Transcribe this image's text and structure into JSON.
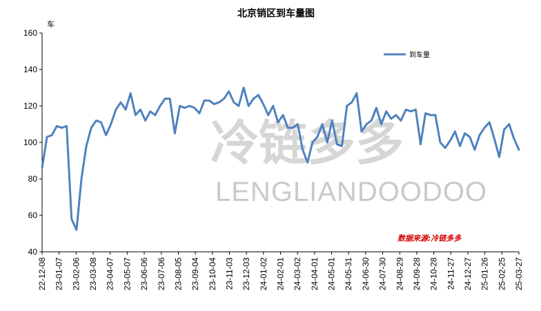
{
  "chart_data": {
    "type": "line",
    "title": "北京销区到车量图",
    "ylabel": "车",
    "ylim": [
      40,
      160
    ],
    "yticks": [
      40,
      60,
      80,
      100,
      120,
      140,
      160
    ],
    "grid": false,
    "legend_position": "top-right",
    "x_tick_labels": [
      "22-12-08",
      "23-01-07",
      "23-02-06",
      "23-03-08",
      "23-04-07",
      "23-05-07",
      "23-06-06",
      "23-07-06",
      "23-08-05",
      "23-09-04",
      "23-10-04",
      "23-11-03",
      "23-12-03",
      "24-01-02",
      "24-02-01",
      "24-03-02",
      "24-04-01",
      "24-05-01",
      "24-05-31",
      "24-06-30",
      "24-07-30",
      "24-08-29",
      "24-09-28",
      "24-10-28",
      "24-11-27",
      "24-12-27",
      "25-01-26",
      "25-02-25",
      "25-03-27"
    ],
    "series": [
      {
        "name": "到车量",
        "color": "#4f81bd",
        "values": [
          86,
          103,
          104,
          109,
          108,
          109,
          58,
          52,
          80,
          98,
          108,
          112,
          111,
          104,
          110,
          118,
          122,
          118,
          127,
          115,
          118,
          112,
          117,
          115,
          120,
          124,
          124,
          105,
          120,
          119,
          120,
          119,
          116,
          123,
          123,
          121,
          122,
          124,
          128,
          122,
          120,
          130,
          120,
          124,
          126,
          121,
          115,
          120,
          111,
          115,
          108,
          108,
          110,
          96,
          89,
          100,
          103,
          110,
          100,
          112,
          99,
          98,
          120,
          122,
          127,
          106,
          110,
          112,
          119,
          110,
          117,
          113,
          115,
          112,
          118,
          117,
          118,
          99,
          116,
          115,
          115,
          100,
          97,
          101,
          106,
          98,
          105,
          103,
          96,
          104,
          108,
          111,
          102,
          92,
          107,
          110,
          102,
          96
        ]
      }
    ],
    "watermark": "LENGLIANDOODOO",
    "watermark_cn": "冷链多多",
    "source": "数据来源:冷链多多"
  }
}
